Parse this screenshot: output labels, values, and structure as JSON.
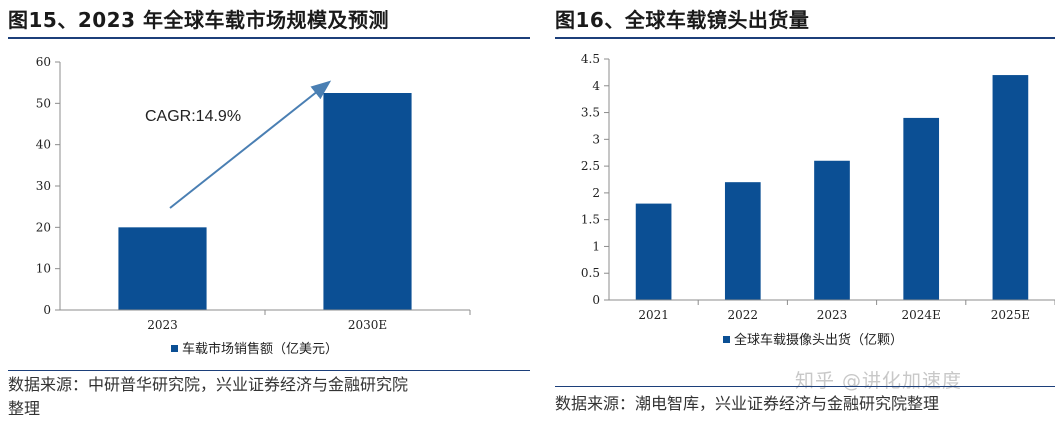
{
  "page": {
    "left_title": "图15、2023 年全球车载市场规模及预测",
    "right_title": "图16、全球车载镜头出货量",
    "left_source_line1": "数据来源：中研普华研究院，兴业证券经济与金融研究院",
    "left_source_line2": "整理",
    "right_source": "数据来源：潮电智库，兴业证券经济与金融研究院整理",
    "watermark": "知乎 @讲化加速度"
  },
  "colors": {
    "bar": "#0b4f94",
    "arrow": "#4a7fb3",
    "rule": "#1c3f7a",
    "axis": "#8c8c8c"
  },
  "chart_data": [
    {
      "type": "bar",
      "title": "图15、2023 年全球车载市场规模及预测",
      "categories": [
        "2023",
        "2030E"
      ],
      "series": [
        {
          "name": "车载市场销售额（亿美元）",
          "values": [
            20,
            52.5
          ]
        }
      ],
      "ylim": [
        0,
        60
      ],
      "yticks": [
        "0",
        "10",
        "20",
        "30",
        "40",
        "50",
        "60"
      ],
      "annotation": "CAGR:14.9%",
      "legend": "bottom",
      "grid": false
    },
    {
      "type": "bar",
      "title": "图16、全球车载镜头出货量",
      "categories": [
        "2021",
        "2022",
        "2023",
        "2024E",
        "2025E"
      ],
      "series": [
        {
          "name": "全球车载摄像头出货（亿颗）",
          "values": [
            1.8,
            2.2,
            2.6,
            3.4,
            4.2
          ]
        }
      ],
      "ylim": [
        0,
        4.5
      ],
      "yticks": [
        "0",
        "0.5",
        "1",
        "1.5",
        "2",
        "2.5",
        "3",
        "3.5",
        "4",
        "4.5"
      ],
      "legend": "bottom",
      "grid": false
    }
  ]
}
